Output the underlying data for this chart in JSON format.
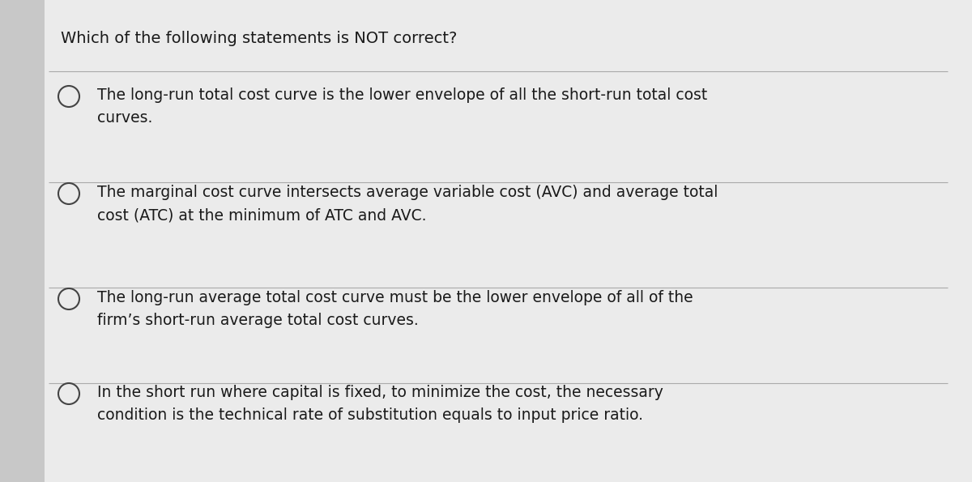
{
  "title": "Which of the following statements is NOT correct?",
  "title_fontsize": 14,
  "options": [
    "The long-run total cost curve is the lower envelope of all the short-run total cost\ncurves.",
    "The marginal cost curve intersects average variable cost (AVC) and average total\ncost (ATC) at the minimum of ATC and AVC.",
    "The long-run average total cost curve must be the lower envelope of all of the\nfirm’s short-run average total cost curves.",
    "In the short run where capital is fixed, to minimize the cost, the necessary\ncondition is the technical rate of substitution equals to input price ratio."
  ],
  "option_fontsize": 13.5,
  "background_color": "#c8c8c8",
  "card_color": "#ebebeb",
  "text_color": "#1a1a1a",
  "divider_color": "#aaaaaa",
  "circle_color": "#444444",
  "left_margin_color": "#b8b8b8"
}
